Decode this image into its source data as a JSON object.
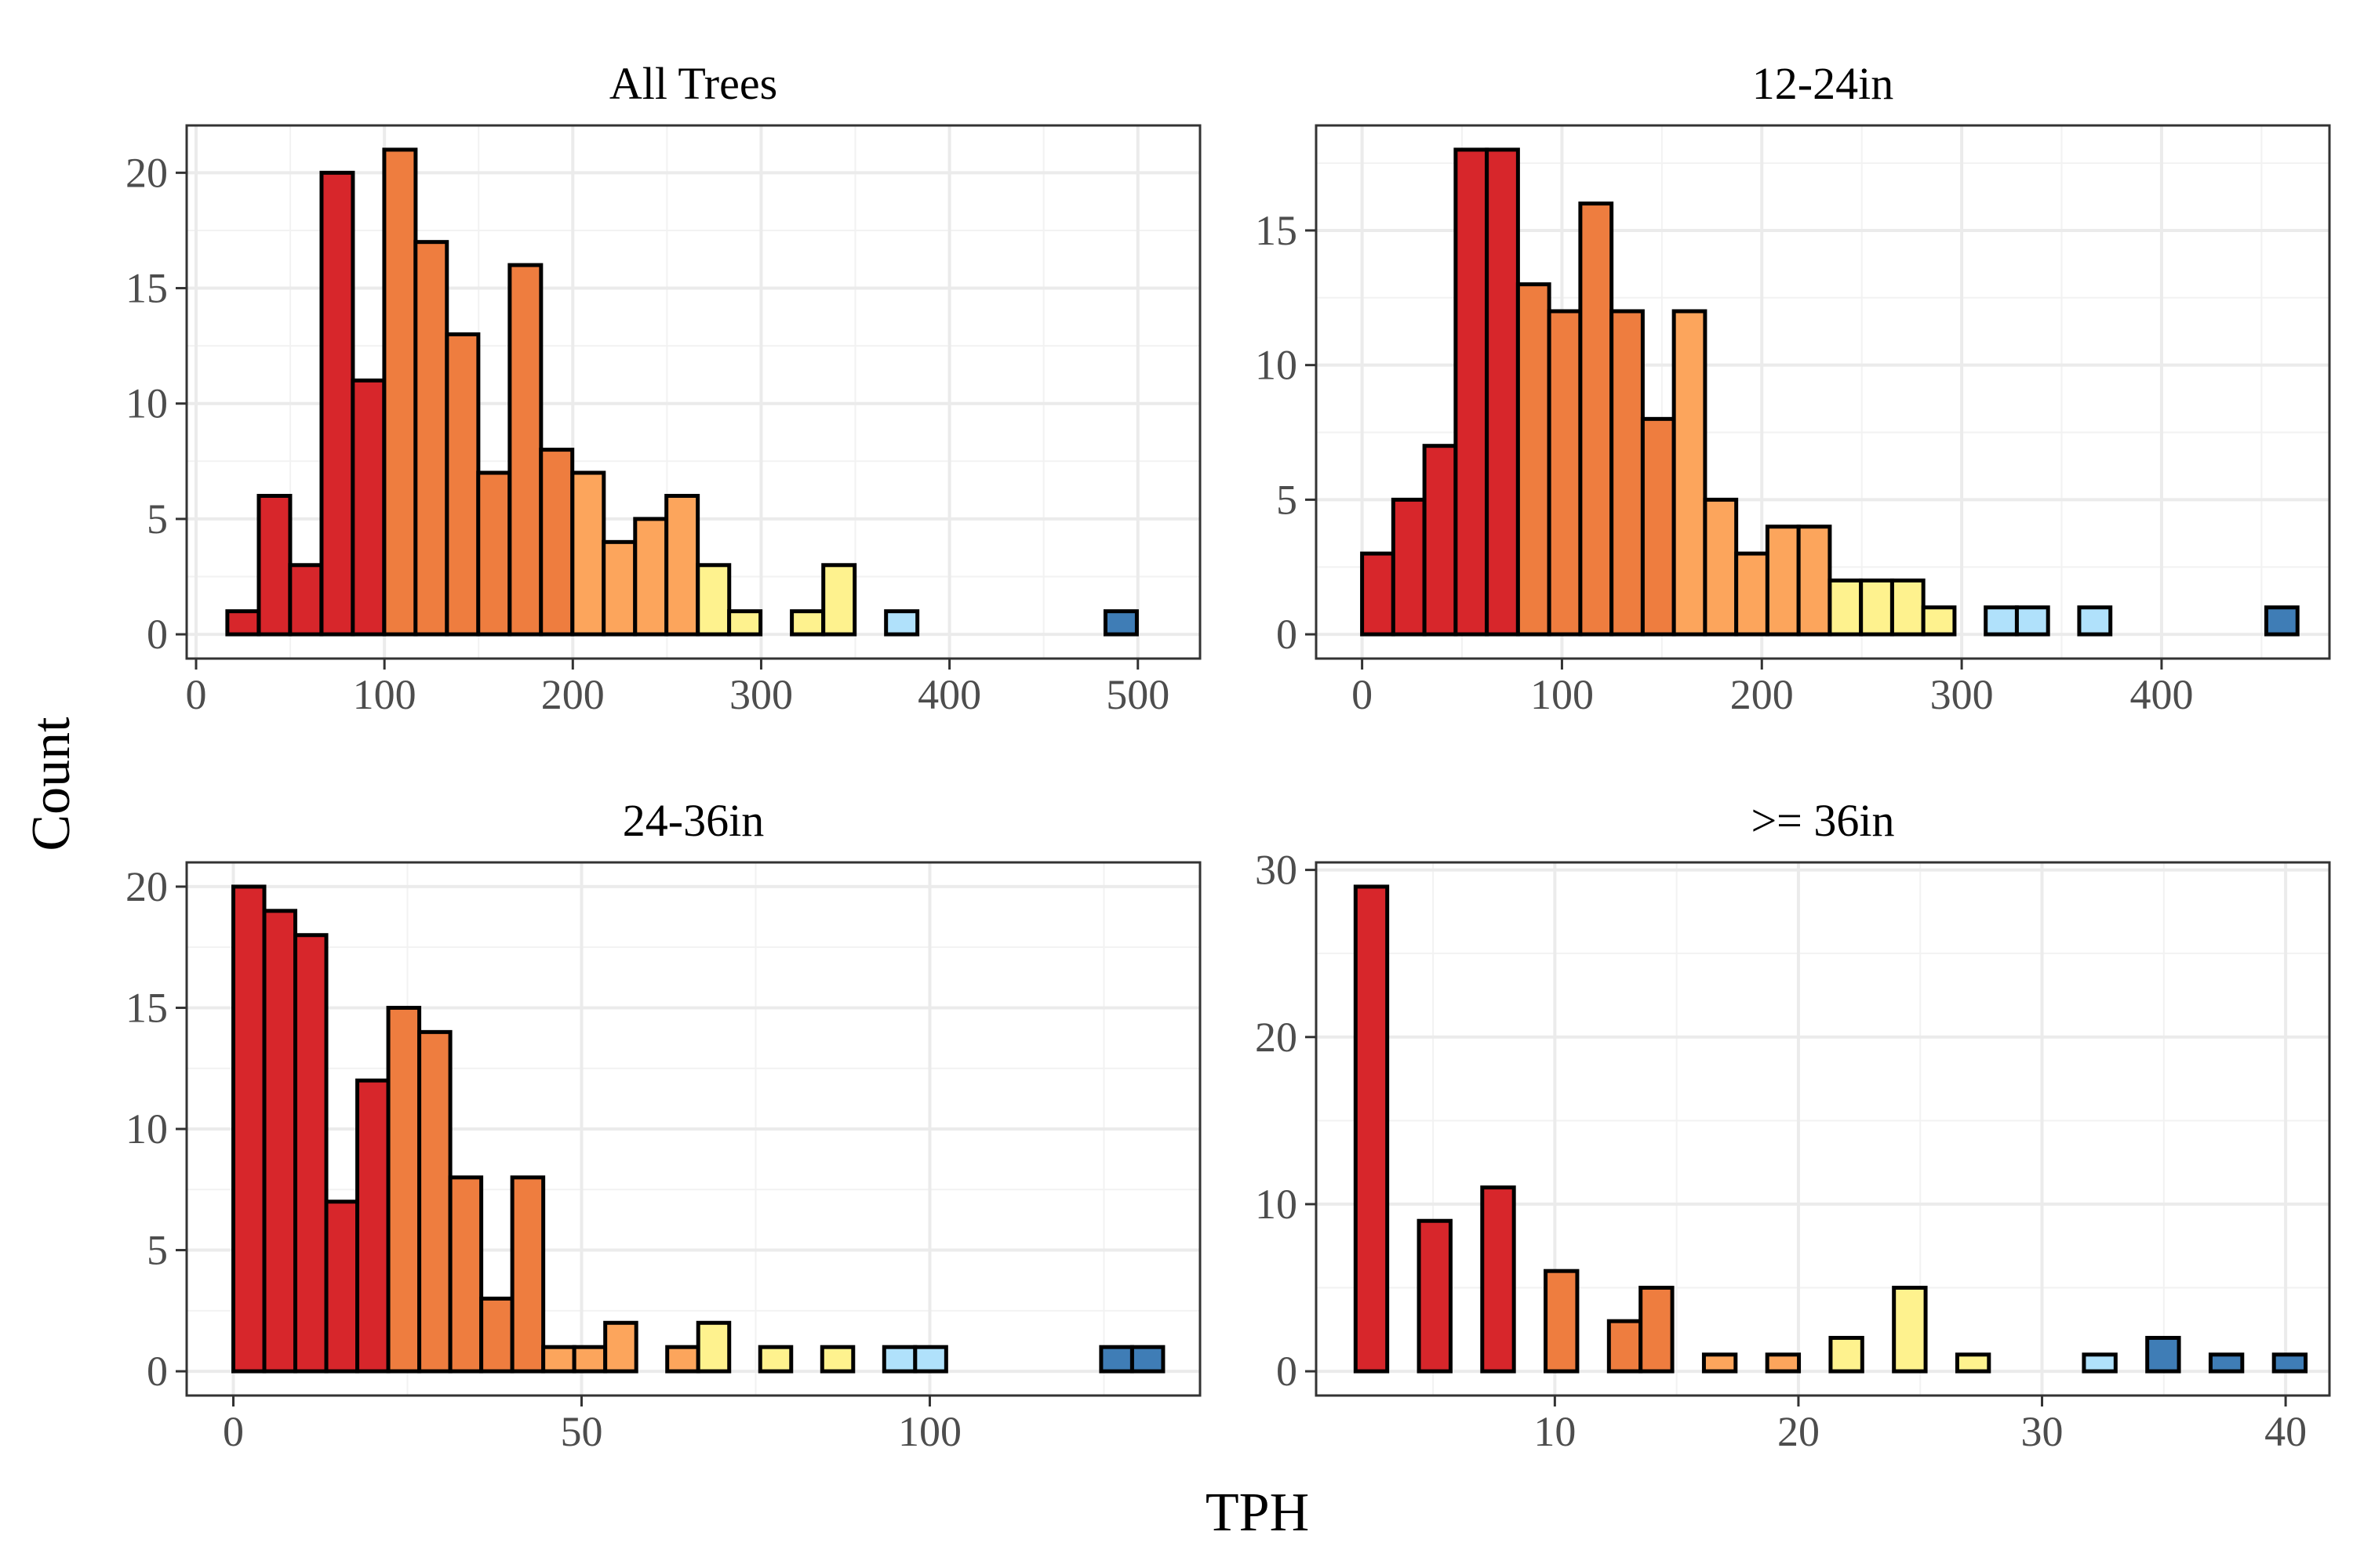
{
  "figure": {
    "xlabel": "TPH",
    "ylabel": "Count"
  },
  "chart_data": [
    {
      "type": "bar",
      "title": "All Trees",
      "xlabel": "TPH",
      "ylabel": "Count",
      "xlim": [
        -5,
        533
      ],
      "ylim": [
        -1.05,
        22.05
      ],
      "binwidth": 16.65,
      "xticks": [
        0,
        100,
        200,
        300,
        400,
        500
      ],
      "yticks": [
        0,
        5,
        10,
        15,
        20
      ],
      "bins": [
        {
          "x0": 16.6,
          "count": 1,
          "color": "#d7262b"
        },
        {
          "x0": 33.3,
          "count": 6,
          "color": "#d7262b"
        },
        {
          "x0": 49.9,
          "count": 3,
          "color": "#d7262b"
        },
        {
          "x0": 66.6,
          "count": 20,
          "color": "#d7262b"
        },
        {
          "x0": 83.2,
          "count": 11,
          "color": "#d7262b"
        },
        {
          "x0": 99.9,
          "count": 21,
          "color": "#ee7d3f"
        },
        {
          "x0": 116.5,
          "count": 17,
          "color": "#ee7d3f"
        },
        {
          "x0": 133.2,
          "count": 13,
          "color": "#ee7d3f"
        },
        {
          "x0": 149.8,
          "count": 7,
          "color": "#ee7d3f"
        },
        {
          "x0": 166.5,
          "count": 16,
          "color": "#ee7d3f"
        },
        {
          "x0": 183.1,
          "count": 8,
          "color": "#ee7d3f"
        },
        {
          "x0": 199.8,
          "count": 7,
          "color": "#fca55c"
        },
        {
          "x0": 216.4,
          "count": 4,
          "color": "#fca55c"
        },
        {
          "x0": 233.1,
          "count": 5,
          "color": "#fca55c"
        },
        {
          "x0": 249.7,
          "count": 6,
          "color": "#fca55c"
        },
        {
          "x0": 266.4,
          "count": 3,
          "color": "#fef28e"
        },
        {
          "x0": 283.0,
          "count": 1,
          "color": "#fef28e"
        },
        {
          "x0": 299.7,
          "count": 0,
          "color": "#fef28e"
        },
        {
          "x0": 316.3,
          "count": 1,
          "color": "#fef28e"
        },
        {
          "x0": 333.0,
          "count": 3,
          "color": "#fef28e"
        },
        {
          "x0": 349.6,
          "count": 0,
          "color": "#b0e1fb"
        },
        {
          "x0": 366.3,
          "count": 1,
          "color": "#b0e1fb"
        },
        {
          "x0": 382.9,
          "count": 0,
          "color": "#b0e1fb"
        },
        {
          "x0": 399.6,
          "count": 0,
          "color": "#b0e1fb"
        },
        {
          "x0": 416.2,
          "count": 0,
          "color": "#b0e1fb"
        },
        {
          "x0": 432.9,
          "count": 0,
          "color": "#b0e1fb"
        },
        {
          "x0": 449.5,
          "count": 0,
          "color": "#b0e1fb"
        },
        {
          "x0": 466.2,
          "count": 0,
          "color": "#b0e1fb"
        },
        {
          "x0": 482.8,
          "count": 1,
          "color": "#3f7db6"
        }
      ]
    },
    {
      "type": "bar",
      "title": "12-24in",
      "xlabel": "TPH",
      "ylabel": "Count",
      "xlim": [
        -23,
        484
      ],
      "ylim": [
        -0.9,
        18.9
      ],
      "binwidth": 15.6,
      "xticks": [
        0,
        100,
        200,
        300,
        400
      ],
      "yticks": [
        0,
        5,
        10,
        15
      ],
      "bins": [
        {
          "x0": 0.0,
          "count": 3,
          "color": "#d7262b"
        },
        {
          "x0": 15.6,
          "count": 5,
          "color": "#d7262b"
        },
        {
          "x0": 31.2,
          "count": 7,
          "color": "#d7262b"
        },
        {
          "x0": 46.8,
          "count": 18,
          "color": "#d7262b"
        },
        {
          "x0": 62.4,
          "count": 18,
          "color": "#d7262b"
        },
        {
          "x0": 78.0,
          "count": 13,
          "color": "#ee7d3f"
        },
        {
          "x0": 93.6,
          "count": 12,
          "color": "#ee7d3f"
        },
        {
          "x0": 109.2,
          "count": 16,
          "color": "#ee7d3f"
        },
        {
          "x0": 124.8,
          "count": 12,
          "color": "#ee7d3f"
        },
        {
          "x0": 140.4,
          "count": 8,
          "color": "#ee7d3f"
        },
        {
          "x0": 156.0,
          "count": 12,
          "color": "#fca55c"
        },
        {
          "x0": 171.6,
          "count": 5,
          "color": "#fca55c"
        },
        {
          "x0": 187.2,
          "count": 3,
          "color": "#fca55c"
        },
        {
          "x0": 202.8,
          "count": 4,
          "color": "#fca55c"
        },
        {
          "x0": 218.4,
          "count": 4,
          "color": "#fca55c"
        },
        {
          "x0": 234.0,
          "count": 2,
          "color": "#fef28e"
        },
        {
          "x0": 249.6,
          "count": 2,
          "color": "#fef28e"
        },
        {
          "x0": 265.2,
          "count": 2,
          "color": "#fef28e"
        },
        {
          "x0": 280.8,
          "count": 1,
          "color": "#fef28e"
        },
        {
          "x0": 296.4,
          "count": 0,
          "color": "#b0e1fb"
        },
        {
          "x0": 312.0,
          "count": 1,
          "color": "#b0e1fb"
        },
        {
          "x0": 327.6,
          "count": 1,
          "color": "#b0e1fb"
        },
        {
          "x0": 343.2,
          "count": 0,
          "color": "#b0e1fb"
        },
        {
          "x0": 358.8,
          "count": 1,
          "color": "#b0e1fb"
        },
        {
          "x0": 374.4,
          "count": 0,
          "color": "#b0e1fb"
        },
        {
          "x0": 390.0,
          "count": 0,
          "color": "#b0e1fb"
        },
        {
          "x0": 405.6,
          "count": 0,
          "color": "#b0e1fb"
        },
        {
          "x0": 421.2,
          "count": 0,
          "color": "#b0e1fb"
        },
        {
          "x0": 436.8,
          "count": 0,
          "color": "#b0e1fb"
        },
        {
          "x0": 452.4,
          "count": 1,
          "color": "#3f7db6"
        }
      ]
    },
    {
      "type": "bar",
      "title": "24-36in",
      "xlabel": "TPH",
      "ylabel": "Count",
      "xlim": [
        -6.7,
        138.8
      ],
      "ylim": [
        -1,
        21
      ],
      "binwidth": 4.45,
      "xticks": [
        0,
        50,
        100
      ],
      "yticks": [
        0,
        5,
        10,
        15,
        20
      ],
      "bins": [
        {
          "x0": 0.0,
          "count": 20,
          "color": "#d7262b"
        },
        {
          "x0": 4.45,
          "count": 19,
          "color": "#d7262b"
        },
        {
          "x0": 8.9,
          "count": 18,
          "color": "#d7262b"
        },
        {
          "x0": 13.35,
          "count": 7,
          "color": "#d7262b"
        },
        {
          "x0": 17.8,
          "count": 12,
          "color": "#d7262b"
        },
        {
          "x0": 22.25,
          "count": 15,
          "color": "#ee7d3f"
        },
        {
          "x0": 26.7,
          "count": 14,
          "color": "#ee7d3f"
        },
        {
          "x0": 31.15,
          "count": 8,
          "color": "#ee7d3f"
        },
        {
          "x0": 35.6,
          "count": 3,
          "color": "#ee7d3f"
        },
        {
          "x0": 40.05,
          "count": 8,
          "color": "#ee7d3f"
        },
        {
          "x0": 44.5,
          "count": 1,
          "color": "#fca55c"
        },
        {
          "x0": 48.95,
          "count": 1,
          "color": "#fca55c"
        },
        {
          "x0": 53.4,
          "count": 2,
          "color": "#fca55c"
        },
        {
          "x0": 57.85,
          "count": 0,
          "color": "#fca55c"
        },
        {
          "x0": 62.3,
          "count": 1,
          "color": "#fca55c"
        },
        {
          "x0": 66.75,
          "count": 2,
          "color": "#fef28e"
        },
        {
          "x0": 71.2,
          "count": 0,
          "color": "#fef28e"
        },
        {
          "x0": 75.65,
          "count": 1,
          "color": "#fef28e"
        },
        {
          "x0": 80.1,
          "count": 0,
          "color": "#fef28e"
        },
        {
          "x0": 84.55,
          "count": 1,
          "color": "#fef28e"
        },
        {
          "x0": 89.0,
          "count": 0,
          "color": "#b0e1fb"
        },
        {
          "x0": 93.45,
          "count": 1,
          "color": "#b0e1fb"
        },
        {
          "x0": 97.9,
          "count": 1,
          "color": "#b0e1fb"
        },
        {
          "x0": 102.35,
          "count": 0,
          "color": "#b0e1fb"
        },
        {
          "x0": 106.8,
          "count": 0,
          "color": "#b0e1fb"
        },
        {
          "x0": 111.25,
          "count": 0,
          "color": "#b0e1fb"
        },
        {
          "x0": 115.7,
          "count": 0,
          "color": "#b0e1fb"
        },
        {
          "x0": 120.15,
          "count": 0,
          "color": "#b0e1fb"
        },
        {
          "x0": 124.6,
          "count": 1,
          "color": "#3f7db6"
        },
        {
          "x0": 129.05,
          "count": 1,
          "color": "#3f7db6"
        }
      ]
    },
    {
      "type": "bar",
      "title": ">= 36in",
      "xlabel": "TPH",
      "ylabel": "Count",
      "xlim": [
        0.2,
        41.8
      ],
      "ylim": [
        -1.45,
        30.45
      ],
      "binwidth": 1.3,
      "xticks": [
        10,
        20,
        30,
        40
      ],
      "yticks": [
        0,
        10,
        20,
        30
      ],
      "bins": [
        {
          "x0": 1.82,
          "count": 29,
          "color": "#d7262b"
        },
        {
          "x0": 3.12,
          "count": 0,
          "color": "#d7262b"
        },
        {
          "x0": 4.42,
          "count": 9,
          "color": "#d7262b"
        },
        {
          "x0": 5.72,
          "count": 0,
          "color": "#d7262b"
        },
        {
          "x0": 7.02,
          "count": 11,
          "color": "#d7262b"
        },
        {
          "x0": 8.32,
          "count": 0,
          "color": "#ee7d3f"
        },
        {
          "x0": 9.62,
          "count": 6,
          "color": "#ee7d3f"
        },
        {
          "x0": 10.92,
          "count": 0,
          "color": "#ee7d3f"
        },
        {
          "x0": 12.22,
          "count": 3,
          "color": "#ee7d3f"
        },
        {
          "x0": 13.52,
          "count": 5,
          "color": "#ee7d3f"
        },
        {
          "x0": 14.82,
          "count": 0,
          "color": "#fca55c"
        },
        {
          "x0": 16.12,
          "count": 1,
          "color": "#fca55c"
        },
        {
          "x0": 17.42,
          "count": 0,
          "color": "#fca55c"
        },
        {
          "x0": 18.72,
          "count": 1,
          "color": "#fca55c"
        },
        {
          "x0": 20.02,
          "count": 0,
          "color": "#fca55c"
        },
        {
          "x0": 21.32,
          "count": 2,
          "color": "#fef28e"
        },
        {
          "x0": 22.62,
          "count": 0,
          "color": "#fef28e"
        },
        {
          "x0": 23.92,
          "count": 5,
          "color": "#fef28e"
        },
        {
          "x0": 25.22,
          "count": 0,
          "color": "#fef28e"
        },
        {
          "x0": 26.52,
          "count": 1,
          "color": "#fef28e"
        },
        {
          "x0": 27.82,
          "count": 0,
          "color": "#b0e1fb"
        },
        {
          "x0": 29.12,
          "count": 0,
          "color": "#b0e1fb"
        },
        {
          "x0": 30.42,
          "count": 0,
          "color": "#b0e1fb"
        },
        {
          "x0": 31.72,
          "count": 1,
          "color": "#b0e1fb"
        },
        {
          "x0": 33.02,
          "count": 0,
          "color": "#b0e1fb"
        },
        {
          "x0": 34.32,
          "count": 2,
          "color": "#3f7db6"
        },
        {
          "x0": 35.62,
          "count": 0,
          "color": "#3f7db6"
        },
        {
          "x0": 36.92,
          "count": 1,
          "color": "#3f7db6"
        },
        {
          "x0": 38.22,
          "count": 0,
          "color": "#3f7db6"
        },
        {
          "x0": 39.52,
          "count": 1,
          "color": "#3f7db6"
        }
      ]
    }
  ]
}
